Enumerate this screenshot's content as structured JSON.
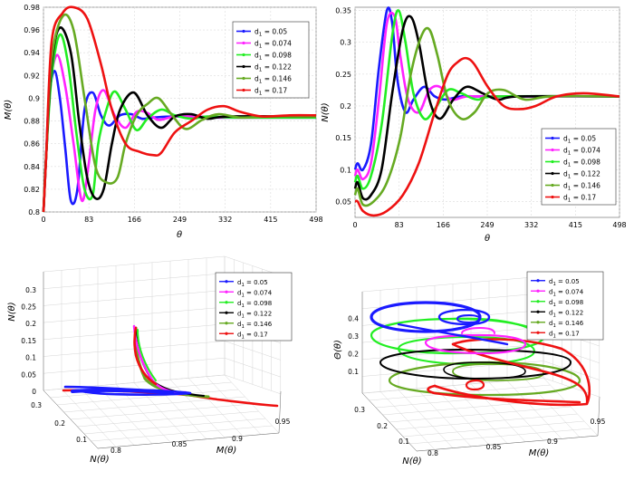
{
  "series_meta": [
    {
      "name": "0.05",
      "color": "#1a1aff"
    },
    {
      "name": "0.074",
      "color": "#ff22ff"
    },
    {
      "name": "0.098",
      "color": "#22ee22"
    },
    {
      "name": "0.122",
      "color": "#000000"
    },
    {
      "name": "0.146",
      "color": "#66aa22"
    },
    {
      "name": "0.17",
      "color": "#ee1111"
    }
  ],
  "legend_prefix": "d",
  "legend_sub": "1",
  "chart_data": [
    {
      "type": "line",
      "title": "",
      "xlabel": "θ",
      "ylabel": "M(θ)",
      "xlim": [
        0,
        498
      ],
      "ylim": [
        0.8,
        0.98
      ],
      "xticks": [
        "0",
        "83",
        "166",
        "249",
        "332",
        "415",
        "498"
      ],
      "yticks": [
        "0.8",
        "0.82",
        "0.84",
        "0.86",
        "0.88",
        "0.9",
        "0.92",
        "0.94",
        "0.96",
        "0.98"
      ],
      "legend_position": "top-right",
      "series": [
        {
          "name": "d1 = 0.05",
          "x": [
            0,
            5,
            10,
            20,
            30,
            40,
            50,
            62,
            75,
            90,
            105,
            120,
            140,
            160,
            180,
            200,
            240,
            300,
            498
          ],
          "values": [
            0.8,
            0.85,
            0.9,
            0.924,
            0.9,
            0.855,
            0.81,
            0.82,
            0.89,
            0.905,
            0.885,
            0.876,
            0.885,
            0.886,
            0.882,
            0.883,
            0.884,
            0.883,
            0.883
          ]
        },
        {
          "name": "d1 = 0.074",
          "x": [
            0,
            5,
            12,
            25,
            40,
            55,
            70,
            82,
            95,
            110,
            130,
            150,
            170,
            190,
            210,
            240,
            280,
            330,
            498
          ],
          "values": [
            0.8,
            0.85,
            0.91,
            0.938,
            0.91,
            0.86,
            0.81,
            0.84,
            0.89,
            0.907,
            0.885,
            0.874,
            0.888,
            0.887,
            0.881,
            0.884,
            0.884,
            0.883,
            0.883
          ]
        },
        {
          "name": "d1 = 0.098",
          "x": [
            0,
            5,
            15,
            30,
            45,
            60,
            75,
            90,
            100,
            115,
            130,
            150,
            170,
            190,
            215,
            240,
            270,
            300,
            350,
            498
          ],
          "values": [
            0.8,
            0.85,
            0.92,
            0.956,
            0.93,
            0.87,
            0.82,
            0.815,
            0.86,
            0.89,
            0.906,
            0.89,
            0.872,
            0.882,
            0.89,
            0.885,
            0.882,
            0.884,
            0.883,
            0.883
          ]
        },
        {
          "name": "d1 = 0.122",
          "x": [
            0,
            5,
            15,
            30,
            50,
            65,
            80,
            95,
            110,
            125,
            140,
            165,
            190,
            215,
            240,
            270,
            300,
            340,
            498
          ],
          "values": [
            0.8,
            0.85,
            0.93,
            0.962,
            0.94,
            0.88,
            0.83,
            0.812,
            0.82,
            0.86,
            0.89,
            0.905,
            0.885,
            0.874,
            0.884,
            0.886,
            0.882,
            0.884,
            0.884
          ]
        },
        {
          "name": "d1 = 0.146",
          "x": [
            0,
            5,
            15,
            35,
            55,
            75,
            95,
            115,
            135,
            150,
            170,
            190,
            210,
            235,
            260,
            290,
            320,
            360,
            410,
            498
          ],
          "values": [
            0.8,
            0.85,
            0.935,
            0.972,
            0.96,
            0.9,
            0.84,
            0.826,
            0.83,
            0.86,
            0.885,
            0.895,
            0.9,
            0.885,
            0.873,
            0.881,
            0.886,
            0.883,
            0.884,
            0.884
          ]
        },
        {
          "name": "d1 = 0.17",
          "x": [
            0,
            5,
            15,
            35,
            55,
            80,
            105,
            125,
            150,
            175,
            200,
            215,
            240,
            270,
            300,
            330,
            360,
            400,
            450,
            498
          ],
          "values": [
            0.8,
            0.85,
            0.95,
            0.975,
            0.98,
            0.97,
            0.93,
            0.89,
            0.86,
            0.853,
            0.85,
            0.852,
            0.87,
            0.88,
            0.89,
            0.893,
            0.888,
            0.884,
            0.885,
            0.885
          ]
        }
      ]
    },
    {
      "type": "line",
      "title": "",
      "xlabel": "θ",
      "ylabel": "N(θ)",
      "xlim": [
        0,
        498
      ],
      "ylim": [
        0.025,
        0.355
      ],
      "xticks": [
        "0",
        "83",
        "166",
        "249",
        "332",
        "415",
        "498"
      ],
      "yticks": [
        "0.05",
        "0.1",
        "0.15",
        "0.2",
        "0.25",
        "0.3",
        "0.35"
      ],
      "legend_position": "bottom-right",
      "series": [
        {
          "name": "d1 = 0.05",
          "x": [
            0,
            5,
            15,
            30,
            45,
            60,
            70,
            80,
            95,
            110,
            130,
            150,
            170,
            200,
            240,
            498
          ],
          "values": [
            0.1,
            0.11,
            0.1,
            0.14,
            0.26,
            0.35,
            0.33,
            0.24,
            0.19,
            0.21,
            0.23,
            0.215,
            0.21,
            0.215,
            0.215,
            0.215
          ]
        },
        {
          "name": "d1 = 0.074",
          "x": [
            0,
            5,
            15,
            30,
            45,
            60,
            75,
            85,
            100,
            120,
            140,
            160,
            180,
            210,
            250,
            498
          ],
          "values": [
            0.09,
            0.1,
            0.085,
            0.11,
            0.21,
            0.33,
            0.34,
            0.28,
            0.21,
            0.19,
            0.225,
            0.23,
            0.21,
            0.215,
            0.215,
            0.215
          ]
        },
        {
          "name": "d1 = 0.098",
          "x": [
            0,
            5,
            15,
            30,
            50,
            70,
            82,
            95,
            110,
            130,
            150,
            175,
            200,
            230,
            270,
            498
          ],
          "values": [
            0.08,
            0.09,
            0.07,
            0.09,
            0.17,
            0.31,
            0.35,
            0.3,
            0.22,
            0.18,
            0.195,
            0.225,
            0.22,
            0.21,
            0.215,
            0.215
          ]
        },
        {
          "name": "d1 = 0.122",
          "x": [
            0,
            5,
            15,
            30,
            50,
            70,
            90,
            105,
            120,
            140,
            160,
            185,
            210,
            240,
            270,
            310,
            498
          ],
          "values": [
            0.07,
            0.08,
            0.055,
            0.06,
            0.1,
            0.22,
            0.32,
            0.34,
            0.3,
            0.21,
            0.18,
            0.21,
            0.23,
            0.22,
            0.21,
            0.215,
            0.215
          ]
        },
        {
          "name": "d1 = 0.146",
          "x": [
            0,
            5,
            15,
            35,
            60,
            85,
            105,
            125,
            140,
            155,
            175,
            200,
            225,
            250,
            280,
            320,
            370,
            498
          ],
          "values": [
            0.06,
            0.07,
            0.045,
            0.05,
            0.08,
            0.15,
            0.25,
            0.31,
            0.32,
            0.28,
            0.21,
            0.18,
            0.19,
            0.22,
            0.225,
            0.21,
            0.215,
            0.215
          ]
        },
        {
          "name": "d1 = 0.17",
          "x": [
            0,
            5,
            15,
            35,
            60,
            90,
            120,
            150,
            175,
            195,
            210,
            225,
            250,
            280,
            310,
            340,
            380,
            430,
            498
          ],
          "values": [
            0.05,
            0.05,
            0.035,
            0.028,
            0.035,
            0.06,
            0.11,
            0.19,
            0.25,
            0.27,
            0.275,
            0.265,
            0.23,
            0.2,
            0.195,
            0.2,
            0.215,
            0.22,
            0.215
          ]
        }
      ]
    },
    {
      "type": "line3d",
      "title": "",
      "xlabel": "M(θ)",
      "ylabel": "N(θ)",
      "zlabel": "N(θ)",
      "x_ticks": [
        "0.8",
        "0.85",
        "0.9",
        "0.95"
      ],
      "y_ticks": [
        "0.1",
        "0.2",
        "0.3"
      ],
      "z_ticks": [
        "0",
        "0.05",
        "0.1",
        "0.15",
        "0.2",
        "0.25",
        "0.3"
      ],
      "legend_position": "top-right",
      "series": [
        {
          "name": "d1 = 0.05"
        },
        {
          "name": "d1 = 0.074"
        },
        {
          "name": "d1 = 0.098"
        },
        {
          "name": "d1 = 0.122"
        },
        {
          "name": "d1 = 0.146"
        },
        {
          "name": "d1 = 0.17"
        }
      ]
    },
    {
      "type": "line3d",
      "title": "",
      "xlabel": "M(θ)",
      "ylabel": "N(θ)",
      "zlabel": "Θ(θ)",
      "x_ticks": [
        "0.8",
        "0.85",
        "0.9",
        "0.95"
      ],
      "y_ticks": [
        "0.1",
        "0.2",
        "0.3"
      ],
      "z_ticks": [
        "0.1",
        "0.2",
        "0.3",
        "0.4"
      ],
      "legend_position": "top-right",
      "series": [
        {
          "name": "d1 = 0.05"
        },
        {
          "name": "d1 = 0.074"
        },
        {
          "name": "d1 = 0.098"
        },
        {
          "name": "d1 = 0.122"
        },
        {
          "name": "d1 = 0.146"
        },
        {
          "name": "d1 = 0.17"
        }
      ]
    }
  ]
}
